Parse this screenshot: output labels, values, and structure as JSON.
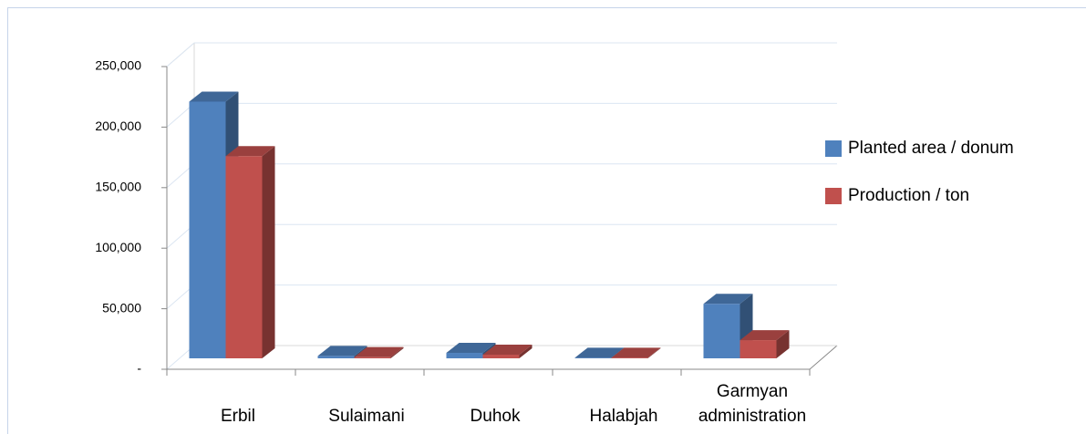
{
  "chart_data": {
    "type": "bar3d",
    "categories": [
      "Erbil",
      "Sulaimani",
      "Duhok",
      "Halabjah",
      "Garmyan administration"
    ],
    "series": [
      {
        "name": "Planted area / donum",
        "color": "#4f81bd",
        "values": [
          212000,
          2000,
          4500,
          500,
          45000
        ]
      },
      {
        "name": "Production / ton",
        "color": "#c0504d",
        "values": [
          167000,
          1000,
          3000,
          500,
          15000
        ]
      }
    ],
    "ylim": [
      0,
      250000
    ],
    "yticks": [
      {
        "value": 0,
        "label": "-"
      },
      {
        "value": 50000,
        "label": "50,000"
      },
      {
        "value": 100000,
        "label": "100,000"
      },
      {
        "value": 150000,
        "label": "150,000"
      },
      {
        "value": 200000,
        "label": "200,000"
      },
      {
        "value": 250000,
        "label": "250,000"
      }
    ],
    "grid": true,
    "legend": "right"
  }
}
